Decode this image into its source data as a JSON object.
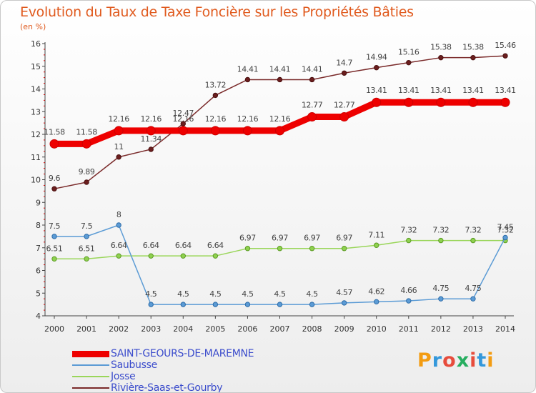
{
  "title": "Evolution du Taux de Taxe Foncière sur les Propriétés Bâties",
  "subtitle": "(en %)",
  "logo": {
    "letters": [
      "P",
      "r",
      "o",
      "x",
      "i",
      "t",
      "i"
    ],
    "colors": [
      "#f39c12",
      "#3498db",
      "#e74c3c",
      "#27ae60",
      "#e74c3c",
      "#3498db",
      "#f39c12"
    ]
  },
  "chart_data": {
    "type": "line",
    "title": "Evolution du Taux de Taxe Foncière sur les Propriétés Bâties",
    "ylabel": "(en %)",
    "ylim": [
      4,
      16
    ],
    "yticks": [
      "4",
      "5",
      "6",
      "7",
      "8",
      "9",
      "10",
      "11",
      "12",
      "13",
      "14",
      "15",
      "16"
    ],
    "categories": [
      "2000",
      "2001",
      "2002",
      "2003",
      "2004",
      "2005",
      "2006",
      "2007",
      "2008",
      "2009",
      "2010",
      "2011",
      "2012",
      "2013",
      "2014"
    ],
    "grid": false,
    "legend_position": "bottom-left",
    "series": [
      {
        "name": "SAINT-GEOURS-DE-MAREMNE",
        "color": "#ee0000",
        "markerFill": "#ee0000",
        "markerStroke": "#cc0000",
        "thick": true,
        "values": [
          11.58,
          11.58,
          12.16,
          12.16,
          12.16,
          12.16,
          12.16,
          12.16,
          12.77,
          12.77,
          13.41,
          13.41,
          13.41,
          13.41,
          13.41
        ],
        "labels": [
          "11.58",
          "11.58",
          "12.16",
          "12.16",
          "12.16",
          "12.16",
          "12.16",
          "12.16",
          "12.77",
          "12.77",
          "13.41",
          "13.41",
          "13.41",
          "13.41",
          "13.41"
        ]
      },
      {
        "name": "Saubusse",
        "color": "#5b9bd5",
        "markerFill": "#5b9bd5",
        "markerStroke": "#2e6ca8",
        "thick": false,
        "values": [
          7.5,
          7.5,
          8,
          4.5,
          4.5,
          4.5,
          4.5,
          4.5,
          4.5,
          4.57,
          4.62,
          4.66,
          4.75,
          4.75,
          7.45
        ],
        "labels": [
          "7.5",
          "7.5",
          "8",
          "4.5",
          "4.5",
          "4.5",
          "4.5",
          "4.5",
          "4.5",
          "4.57",
          "4.62",
          "4.66",
          "4.75",
          "4.75",
          "7.45"
        ]
      },
      {
        "name": "Josse",
        "color": "#9ad65a",
        "markerFill": "#8fd14f",
        "markerStroke": "#5a9a22",
        "thick": false,
        "values": [
          6.51,
          6.51,
          6.64,
          6.64,
          6.64,
          6.64,
          6.97,
          6.97,
          6.97,
          6.97,
          7.11,
          7.32,
          7.32,
          7.32,
          7.32
        ],
        "labels": [
          "6.51",
          "6.51",
          "6.64",
          "6.64",
          "6.64",
          "6.64",
          "6.97",
          "6.97",
          "6.97",
          "6.97",
          "7.11",
          "7.32",
          "7.32",
          "7.32",
          "7.32"
        ]
      },
      {
        "name": "Rivière-Saas-et-Gourby",
        "color": "#7a2a2a",
        "markerFill": "#6b1e1e",
        "markerStroke": "#4a1010",
        "thick": false,
        "values": [
          9.6,
          9.89,
          11,
          11.34,
          12.47,
          13.72,
          14.41,
          14.41,
          14.41,
          14.7,
          14.94,
          15.16,
          15.38,
          15.38,
          15.46
        ],
        "labels": [
          "9.6",
          "9.89",
          "11",
          "11.34",
          "12.47",
          "13.72",
          "14.41",
          "14.41",
          "14.41",
          "14.7",
          "14.94",
          "15.16",
          "15.38",
          "15.38",
          "15.46"
        ]
      }
    ]
  }
}
